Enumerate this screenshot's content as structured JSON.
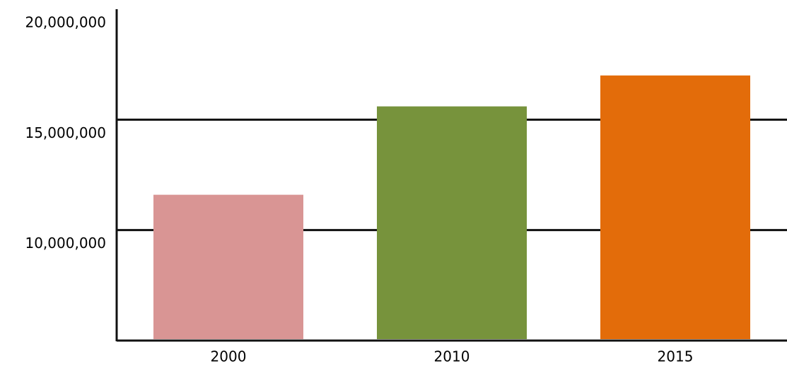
{
  "chart_data": {
    "type": "bar",
    "categories": [
      "2000",
      "2010",
      "2015"
    ],
    "values": [
      11600000,
      15600000,
      17000000
    ],
    "colors": [
      "#d99594",
      "#77933c",
      "#e36c0a"
    ],
    "ylim": [
      5000000,
      20000000
    ],
    "yticks": [
      {
        "value": 10000000,
        "label": "10,000,000"
      },
      {
        "value": 15000000,
        "label": "15,000,000"
      },
      {
        "value": 20000000,
        "label": "20,000,000"
      }
    ],
    "grid": true
  }
}
